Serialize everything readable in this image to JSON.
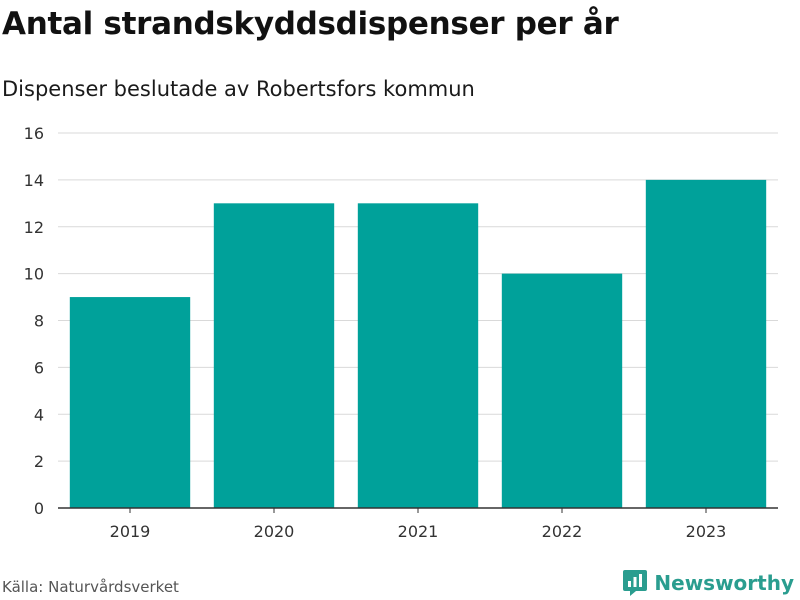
{
  "title": "Antal strandskyddsdispenser per år",
  "subtitle": "Dispenser beslutade av Robertsfors kommun",
  "source": "Källa: Naturvårdsverket",
  "brand": "Newsworthy",
  "colors": {
    "bar": "#00a19a",
    "grid": "#d9d9d9",
    "axis": "#333333",
    "brand": "#2a9d8f"
  },
  "chart_data": {
    "type": "bar",
    "categories": [
      "2019",
      "2020",
      "2021",
      "2022",
      "2023"
    ],
    "values": [
      9,
      13,
      13,
      10,
      14
    ],
    "title": "Antal strandskyddsdispenser per år",
    "subtitle": "Dispenser beslutade av Robertsfors kommun",
    "xlabel": "",
    "ylabel": "",
    "ylim": [
      0,
      16
    ],
    "yticks": [
      0,
      2,
      4,
      6,
      8,
      10,
      12,
      14,
      16
    ],
    "grid": true,
    "legend": "none"
  }
}
